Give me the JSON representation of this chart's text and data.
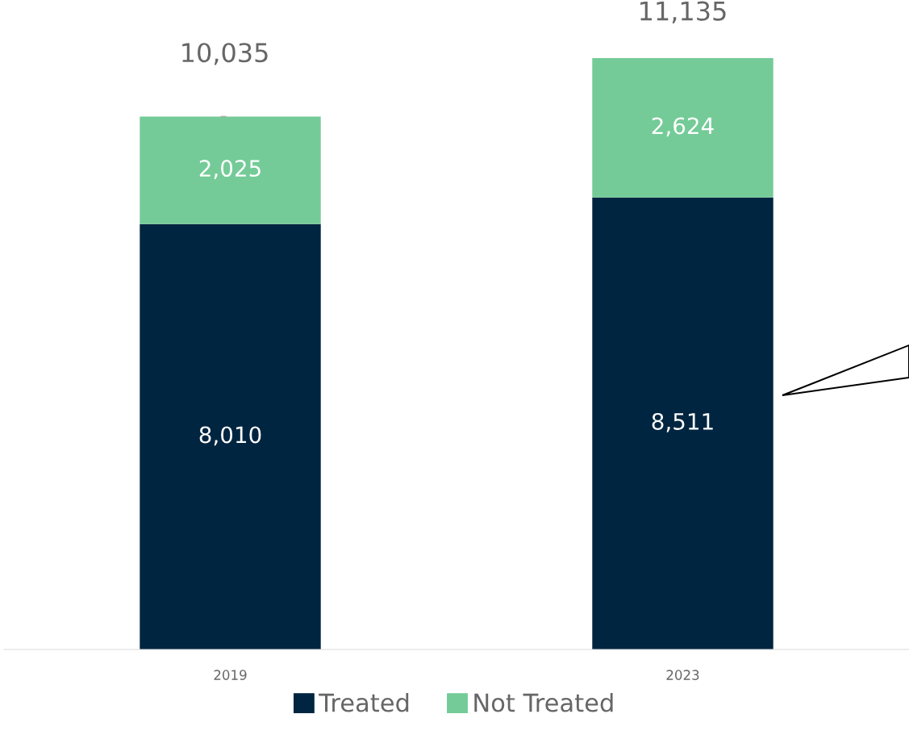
{
  "chart_data": {
    "type": "bar",
    "stacked": true,
    "categories": [
      "2019",
      "2023"
    ],
    "series": [
      {
        "name": "Treated",
        "color": "#002540",
        "values": [
          8010,
          8511
        ],
        "value_labels": [
          "8,010",
          "8,511"
        ]
      },
      {
        "name": "Not Treated",
        "color": "#74cb97",
        "values": [
          2025,
          2624
        ],
        "value_labels": [
          "2,025",
          "2,624"
        ]
      }
    ],
    "totals": [
      "10,035",
      "11,135"
    ],
    "legend": "bottom",
    "grid": false
  }
}
